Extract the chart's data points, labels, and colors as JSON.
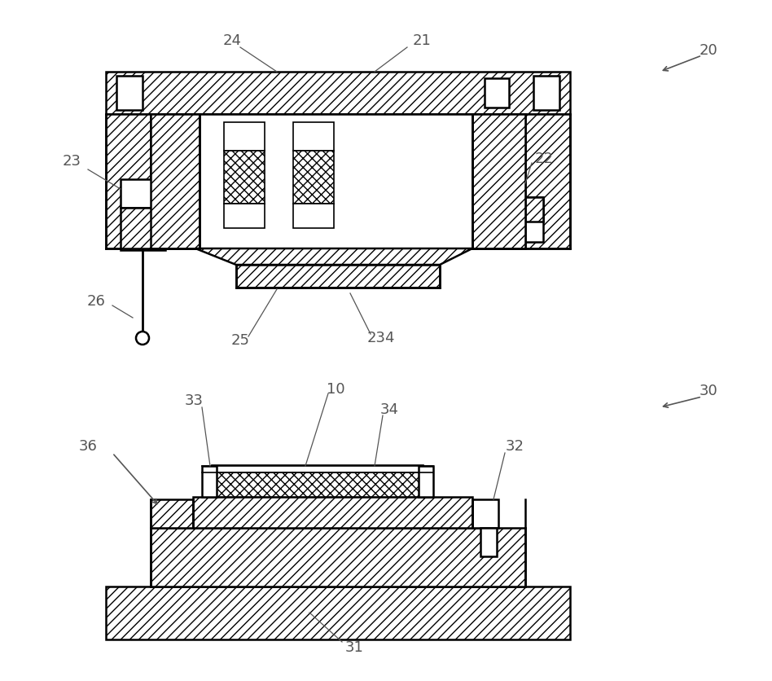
{
  "bg_color": "#ffffff",
  "line_color": "#000000",
  "label_color": "#555555",
  "lw": 1.8,
  "lw_thin": 1.2
}
